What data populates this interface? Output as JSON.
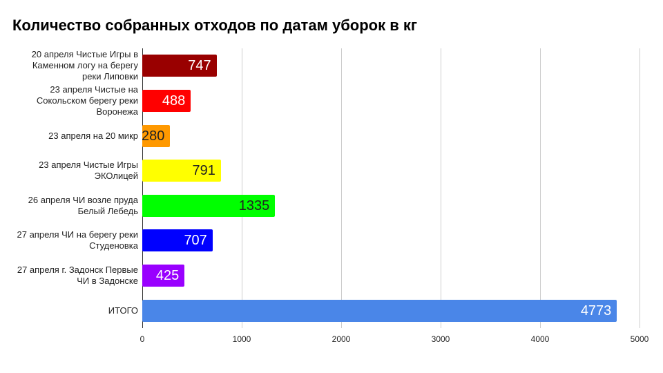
{
  "chart_data": {
    "type": "bar",
    "orientation": "horizontal",
    "title": "Количество собранных отходов по датам уборок в кг",
    "categories": [
      "20 апреля Чистые Игры в Каменном логу на берегу реки Липовки",
      "23 апреля Чистые на Сокольском берегу реки Воронежа",
      "23 апреля на 20 микр",
      "23 апреля Чистые Игры ЭКОлицей",
      "26 апреля ЧИ возле пруда Белый Лебедь",
      "27 апреля ЧИ на берегу реки Студеновка",
      "27 апреля г. Задонск Первые ЧИ в Задонске",
      "ИТОГО"
    ],
    "values": [
      747,
      488,
      280,
      791,
      1335,
      707,
      425,
      4773
    ],
    "colors": [
      "#990000",
      "#ff0000",
      "#ff9900",
      "#ffff00",
      "#00ff00",
      "#0000ff",
      "#9900ff",
      "#4a86e8"
    ],
    "xlim": [
      0,
      5000
    ],
    "xticks": [
      0,
      1000,
      2000,
      3000,
      4000,
      5000
    ],
    "grid": true
  }
}
